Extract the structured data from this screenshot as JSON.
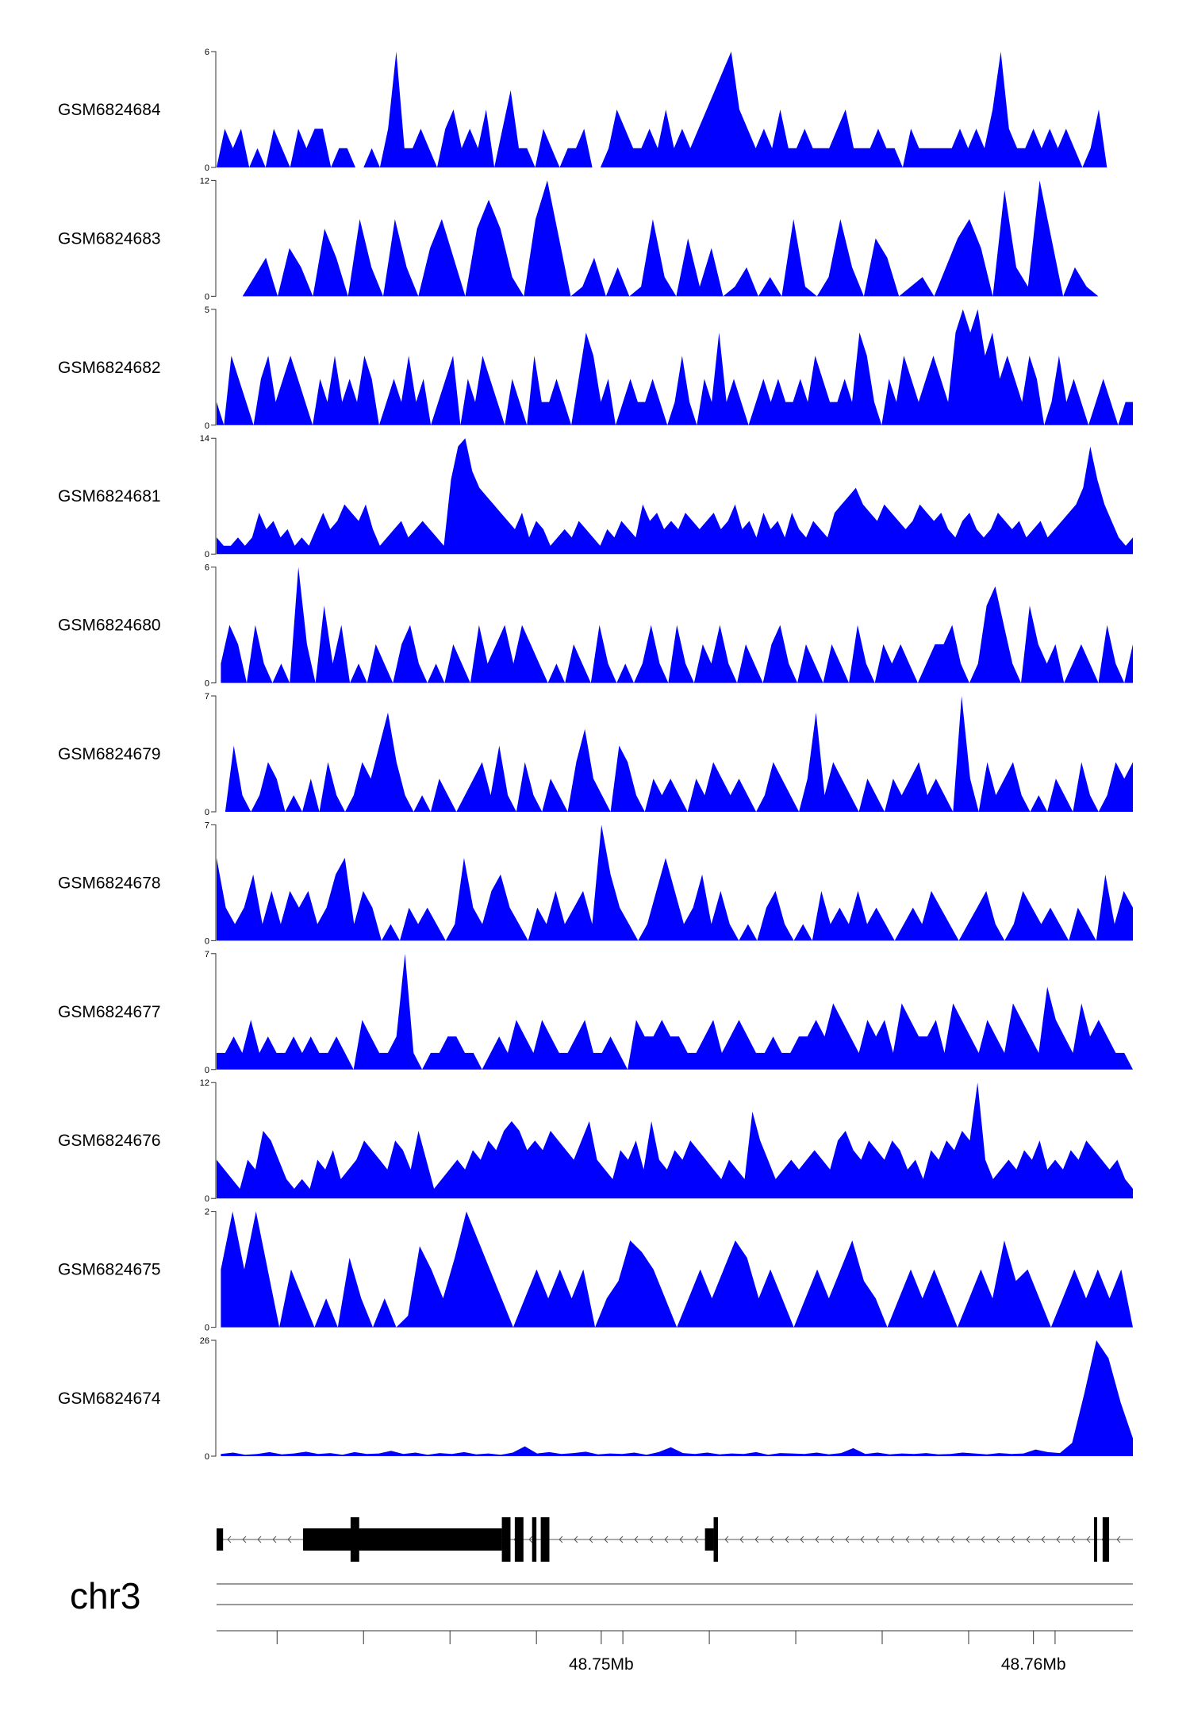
{
  "chart_data": {
    "type": "area",
    "title": "",
    "chromosome": "chr3",
    "x_unit": "Mb",
    "xlim": [
      48.7411,
      48.7623
    ],
    "fill_color": "#0000ff",
    "x_ticks": [
      48.7425,
      48.7445,
      48.7465,
      48.7485,
      48.7505,
      48.7525,
      48.7545,
      48.7565,
      48.7585,
      48.7605
    ],
    "x_tick_labels": [
      {
        "value": 48.75,
        "label": "48.75Mb"
      },
      {
        "value": 48.76,
        "label": "48.76Mb"
      }
    ],
    "tracks": [
      {
        "name": "GSM6824684",
        "ymax": 6,
        "ymin_label": "0",
        "ymax_label": "6",
        "x_start": 48.7411,
        "x_end": 48.7617,
        "values": [
          0,
          2,
          1,
          2,
          0,
          1,
          0,
          2,
          1,
          0,
          2,
          1,
          2,
          2,
          0,
          1,
          1,
          0,
          0,
          1,
          0,
          2,
          6,
          1,
          1,
          2,
          1,
          0,
          2,
          3,
          1,
          2,
          1,
          3,
          0,
          2,
          4,
          1,
          1,
          0,
          2,
          1,
          0,
          1,
          1,
          2,
          0,
          0,
          1,
          3,
          2,
          1,
          1,
          2,
          1,
          3,
          1,
          2,
          1,
          2,
          3,
          4,
          5,
          6,
          3,
          2,
          1,
          2,
          1,
          3,
          1,
          1,
          2,
          1,
          1,
          1,
          2,
          3,
          1,
          1,
          1,
          2,
          1,
          1,
          0,
          2,
          1,
          1,
          1,
          1,
          1,
          2,
          1,
          2,
          1,
          3,
          6,
          2,
          1,
          1,
          2,
          1,
          2,
          1,
          2,
          1,
          0,
          1,
          3,
          0
        ]
      },
      {
        "name": "GSM6824683",
        "ymax": 12,
        "ymin_label": "0",
        "ymax_label": "12",
        "x_start": 48.7417,
        "x_end": 48.7615,
        "values": [
          0,
          2,
          4,
          0,
          5,
          3,
          0,
          7,
          4,
          0,
          8,
          3,
          0,
          8,
          3,
          0,
          5,
          8,
          4,
          0,
          7,
          10,
          7,
          2,
          0,
          8,
          12,
          6,
          0,
          1,
          4,
          0,
          3,
          0,
          1,
          8,
          2,
          0,
          6,
          1,
          5,
          0,
          1,
          3,
          0,
          2,
          0,
          8,
          1,
          0,
          2,
          8,
          3,
          0,
          6,
          4,
          0,
          1,
          2,
          0,
          3,
          6,
          8,
          5,
          0,
          11,
          3,
          1,
          12,
          6,
          0,
          3,
          1,
          0
        ]
      },
      {
        "name": "GSM6824682",
        "ymax": 5,
        "ymin_label": "0",
        "ymax_label": "5",
        "x_start": 48.7411,
        "x_end": 48.7623,
        "values": [
          1,
          0,
          3,
          2,
          1,
          0,
          2,
          3,
          1,
          2,
          3,
          2,
          1,
          0,
          2,
          1,
          3,
          1,
          2,
          1,
          3,
          2,
          0,
          1,
          2,
          1,
          3,
          1,
          2,
          0,
          1,
          2,
          3,
          0,
          2,
          1,
          3,
          2,
          1,
          0,
          2,
          1,
          0,
          3,
          1,
          1,
          2,
          1,
          0,
          2,
          4,
          3,
          1,
          2,
          0,
          1,
          2,
          1,
          1,
          2,
          1,
          0,
          1,
          3,
          1,
          0,
          2,
          1,
          4,
          1,
          2,
          1,
          0,
          1,
          2,
          1,
          2,
          1,
          1,
          2,
          1,
          3,
          2,
          1,
          1,
          2,
          1,
          4,
          3,
          1,
          0,
          2,
          1,
          3,
          2,
          1,
          2,
          3,
          2,
          1,
          4,
          5,
          4,
          5,
          3,
          4,
          2,
          3,
          2,
          1,
          3,
          2,
          0,
          1,
          3,
          1,
          2,
          1,
          0,
          1,
          2,
          1,
          0,
          1,
          1
        ]
      },
      {
        "name": "GSM6824681",
        "ymax": 14,
        "ymin_label": "0",
        "ymax_label": "14",
        "x_start": 48.7411,
        "x_end": 48.7623,
        "values": [
          2,
          1,
          1,
          2,
          1,
          2,
          5,
          3,
          4,
          2,
          3,
          1,
          2,
          1,
          3,
          5,
          3,
          4,
          6,
          5,
          4,
          6,
          3,
          1,
          2,
          3,
          4,
          2,
          3,
          4,
          3,
          2,
          1,
          9,
          13,
          14,
          10,
          8,
          7,
          6,
          5,
          4,
          3,
          5,
          2,
          4,
          3,
          1,
          2,
          3,
          2,
          4,
          3,
          2,
          1,
          3,
          2,
          4,
          3,
          2,
          6,
          4,
          5,
          3,
          4,
          3,
          5,
          4,
          3,
          4,
          5,
          3,
          4,
          6,
          3,
          4,
          2,
          5,
          3,
          4,
          2,
          5,
          3,
          2,
          4,
          3,
          2,
          5,
          6,
          7,
          8,
          6,
          5,
          4,
          6,
          5,
          4,
          3,
          4,
          6,
          5,
          4,
          5,
          3,
          2,
          4,
          5,
          3,
          2,
          3,
          5,
          4,
          3,
          4,
          2,
          3,
          4,
          2,
          3,
          4,
          5,
          6,
          8,
          13,
          9,
          6,
          4,
          2,
          1,
          2
        ]
      },
      {
        "name": "GSM6824680",
        "ymax": 6,
        "ymin_label": "0",
        "ymax_label": "6",
        "x_start": 48.7412,
        "x_end": 48.7623,
        "values": [
          1,
          3,
          2,
          0,
          3,
          1,
          0,
          1,
          0,
          6,
          2,
          0,
          4,
          1,
          3,
          0,
          1,
          0,
          2,
          1,
          0,
          2,
          3,
          1,
          0,
          1,
          0,
          2,
          1,
          0,
          3,
          1,
          2,
          3,
          1,
          3,
          2,
          1,
          0,
          1,
          0,
          2,
          1,
          0,
          3,
          1,
          0,
          1,
          0,
          1,
          3,
          1,
          0,
          3,
          1,
          0,
          2,
          1,
          3,
          1,
          0,
          2,
          1,
          0,
          2,
          3,
          1,
          0,
          2,
          1,
          0,
          2,
          1,
          0,
          3,
          1,
          0,
          2,
          1,
          2,
          1,
          0,
          1,
          2,
          2,
          3,
          1,
          0,
          1,
          4,
          5,
          3,
          1,
          0,
          4,
          2,
          1,
          2,
          0,
          1,
          2,
          1,
          0,
          3,
          1,
          0,
          2
        ]
      },
      {
        "name": "GSM6824679",
        "ymax": 7,
        "ymin_label": "0",
        "ymax_label": "7",
        "x_start": 48.7413,
        "x_end": 48.7623,
        "values": [
          0,
          4,
          1,
          0,
          1,
          3,
          2,
          0,
          1,
          0,
          2,
          0,
          3,
          1,
          0,
          1,
          3,
          2,
          4,
          6,
          3,
          1,
          0,
          1,
          0,
          2,
          1,
          0,
          1,
          2,
          3,
          1,
          4,
          1,
          0,
          3,
          1,
          0,
          2,
          1,
          0,
          3,
          5,
          2,
          1,
          0,
          4,
          3,
          1,
          0,
          2,
          1,
          2,
          1,
          0,
          2,
          1,
          3,
          2,
          1,
          2,
          1,
          0,
          1,
          3,
          2,
          1,
          0,
          2,
          6,
          1,
          3,
          2,
          1,
          0,
          2,
          1,
          0,
          2,
          1,
          2,
          3,
          1,
          2,
          1,
          0,
          7,
          2,
          0,
          3,
          1,
          2,
          3,
          1,
          0,
          1,
          0,
          2,
          1,
          0,
          3,
          1,
          0,
          1,
          3,
          2,
          3
        ]
      },
      {
        "name": "GSM6824678",
        "ymax": 7,
        "ymin_label": "0",
        "ymax_label": "7",
        "x_start": 48.7411,
        "x_end": 48.7623,
        "values": [
          5,
          2,
          1,
          2,
          4,
          1,
          3,
          1,
          3,
          2,
          3,
          1,
          2,
          4,
          5,
          1,
          3,
          2,
          0,
          1,
          0,
          2,
          1,
          2,
          1,
          0,
          1,
          5,
          2,
          1,
          3,
          4,
          2,
          1,
          0,
          2,
          1,
          3,
          1,
          2,
          3,
          1,
          7,
          4,
          2,
          1,
          0,
          1,
          3,
          5,
          3,
          1,
          2,
          4,
          1,
          3,
          1,
          0,
          1,
          0,
          2,
          3,
          1,
          0,
          1,
          0,
          3,
          1,
          2,
          1,
          3,
          1,
          2,
          1,
          0,
          1,
          2,
          1,
          3,
          2,
          1,
          0,
          1,
          2,
          3,
          1,
          0,
          1,
          3,
          2,
          1,
          2,
          1,
          0,
          2,
          1,
          0,
          4,
          1,
          3,
          2
        ]
      },
      {
        "name": "GSM6824677",
        "ymax": 7,
        "ymin_label": "0",
        "ymax_label": "7",
        "x_start": 48.7411,
        "x_end": 48.7623,
        "values": [
          1,
          1,
          2,
          1,
          3,
          1,
          2,
          1,
          1,
          2,
          1,
          2,
          1,
          1,
          2,
          1,
          0,
          3,
          2,
          1,
          1,
          2,
          7,
          1,
          0,
          1,
          1,
          2,
          2,
          1,
          1,
          0,
          1,
          2,
          1,
          3,
          2,
          1,
          3,
          2,
          1,
          1,
          2,
          3,
          1,
          1,
          2,
          1,
          0,
          3,
          2,
          2,
          3,
          2,
          2,
          1,
          1,
          2,
          3,
          1,
          2,
          3,
          2,
          1,
          1,
          2,
          1,
          1,
          2,
          2,
          3,
          2,
          4,
          3,
          2,
          1,
          3,
          2,
          3,
          1,
          4,
          3,
          2,
          2,
          3,
          1,
          4,
          3,
          2,
          1,
          3,
          2,
          1,
          4,
          3,
          2,
          1,
          5,
          3,
          2,
          1,
          4,
          2,
          3,
          2,
          1,
          1,
          0
        ]
      },
      {
        "name": "GSM6824676",
        "ymax": 12,
        "ymin_label": "0",
        "ymax_label": "12",
        "x_start": 48.7411,
        "x_end": 48.7623,
        "values": [
          4,
          3,
          2,
          1,
          4,
          3,
          7,
          6,
          4,
          2,
          1,
          2,
          1,
          4,
          3,
          5,
          2,
          3,
          4,
          6,
          5,
          4,
          3,
          6,
          5,
          3,
          7,
          4,
          1,
          2,
          3,
          4,
          3,
          5,
          4,
          6,
          5,
          7,
          8,
          7,
          5,
          6,
          5,
          7,
          6,
          5,
          4,
          6,
          8,
          4,
          3,
          2,
          5,
          4,
          6,
          3,
          8,
          4,
          3,
          5,
          4,
          6,
          5,
          4,
          3,
          2,
          4,
          3,
          2,
          9,
          6,
          4,
          2,
          3,
          4,
          3,
          4,
          5,
          4,
          3,
          6,
          7,
          5,
          4,
          6,
          5,
          4,
          6,
          5,
          3,
          4,
          2,
          5,
          4,
          6,
          5,
          7,
          6,
          12,
          4,
          2,
          3,
          4,
          3,
          5,
          4,
          6,
          3,
          4,
          3,
          5,
          4,
          6,
          5,
          4,
          3,
          4,
          2,
          1
        ]
      },
      {
        "name": "GSM6824675",
        "ymax": 2,
        "ymin_label": "0",
        "ymax_label": "2",
        "x_start": 48.7412,
        "x_end": 48.7623,
        "values": [
          1,
          2,
          1,
          2,
          1,
          0,
          1,
          0.5,
          0,
          0.5,
          0,
          1.2,
          0.5,
          0,
          0.5,
          0,
          0.2,
          1.4,
          1,
          0.5,
          1.2,
          2,
          1.5,
          1,
          0.5,
          0,
          0.5,
          1,
          0.5,
          1,
          0.5,
          1,
          0,
          0.5,
          0.8,
          1.5,
          1.3,
          1,
          0.5,
          0,
          0.5,
          1,
          0.5,
          1,
          1.5,
          1.2,
          0.5,
          1,
          0.5,
          0,
          0.5,
          1,
          0.5,
          1,
          1.5,
          0.8,
          0.5,
          0,
          0.5,
          1,
          0.5,
          1,
          0.5,
          0,
          0.5,
          1,
          0.5,
          1.5,
          0.8,
          1,
          0.5,
          0,
          0.5,
          1,
          0.5,
          1,
          0.5,
          1,
          0
        ]
      },
      {
        "name": "GSM6824674",
        "ymax": 26,
        "ymin_label": "0",
        "ymax_label": "26",
        "x_start": 48.7412,
        "x_end": 48.7623,
        "values": [
          0.5,
          0.8,
          0.3,
          0.5,
          0.9,
          0.4,
          0.6,
          1,
          0.5,
          0.7,
          0.3,
          0.9,
          0.5,
          0.6,
          1.2,
          0.5,
          0.8,
          0.3,
          0.7,
          0.5,
          0.9,
          0.4,
          0.6,
          0.3,
          0.8,
          2.2,
          0.6,
          0.9,
          0.5,
          0.7,
          1,
          0.4,
          0.6,
          0.5,
          0.8,
          0.3,
          0.9,
          2,
          0.7,
          0.5,
          0.8,
          0.4,
          0.6,
          0.5,
          0.9,
          0.3,
          0.7,
          0.6,
          0.5,
          0.8,
          0.4,
          0.7,
          1.8,
          0.5,
          0.8,
          0.4,
          0.6,
          0.5,
          0.7,
          0.4,
          0.5,
          0.8,
          0.6,
          0.4,
          0.7,
          0.5,
          0.6,
          1.5,
          0.9,
          0.7,
          3,
          14,
          26,
          22,
          12,
          4
        ]
      }
    ],
    "gene_model": {
      "strand": "-",
      "x_start": 48.7411,
      "x_end": 48.7623,
      "exons": [
        {
          "start": 48.7411,
          "end": 48.74125,
          "kind": "small"
        },
        {
          "start": 48.7431,
          "end": 48.7477,
          "kind": "thick"
        },
        {
          "start": 48.7442,
          "end": 48.7444,
          "kind": "tall"
        },
        {
          "start": 48.7477,
          "end": 48.7479,
          "kind": "tall"
        },
        {
          "start": 48.748,
          "end": 48.7482,
          "kind": "tall"
        },
        {
          "start": 48.7484,
          "end": 48.7485,
          "kind": "tall"
        },
        {
          "start": 48.7486,
          "end": 48.7488,
          "kind": "tall"
        },
        {
          "start": 48.7524,
          "end": 48.7526,
          "kind": "small"
        },
        {
          "start": 48.7526,
          "end": 48.7527,
          "kind": "tall"
        },
        {
          "start": 48.7614,
          "end": 48.76145,
          "kind": "tall"
        },
        {
          "start": 48.7616,
          "end": 48.76175,
          "kind": "tall"
        }
      ]
    }
  }
}
